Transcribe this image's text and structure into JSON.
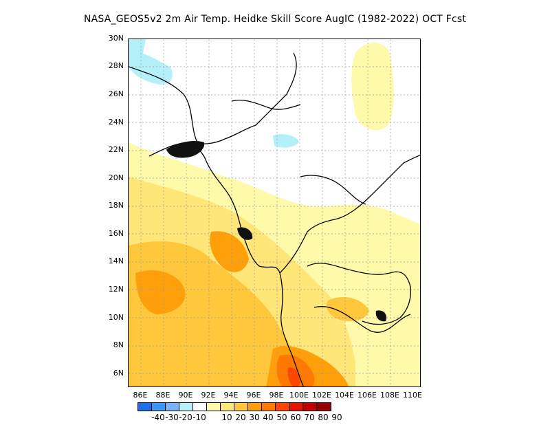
{
  "title": "NASA_GEOS5v2  2m Air Temp. Heidke Skill Score AugIC (1982-2022) OCT Fcst",
  "map": {
    "lat_labels": [
      "30N",
      "28N",
      "26N",
      "24N",
      "22N",
      "20N",
      "18N",
      "16N",
      "14N",
      "12N",
      "10N",
      "8N",
      "6N"
    ],
    "lon_labels": [
      "86E",
      "88E",
      "90E",
      "92E",
      "94E",
      "96E",
      "98E",
      "100E",
      "102E",
      "104E",
      "106E",
      "108E",
      "110E"
    ]
  },
  "colorbar": {
    "colors": [
      "#1e6ee6",
      "#3c96f5",
      "#78b4f5",
      "#b4f0fa",
      "#ffffff",
      "#fffaaa",
      "#ffe678",
      "#ffc83c",
      "#ffa00a",
      "#ff7800",
      "#ff4600",
      "#e61400",
      "#c30000",
      "#960000"
    ],
    "labels": [
      "-40",
      "-30",
      "-20",
      "-10",
      "10",
      "20",
      "30",
      "40",
      "50",
      "60",
      "70",
      "80",
      "90"
    ]
  }
}
